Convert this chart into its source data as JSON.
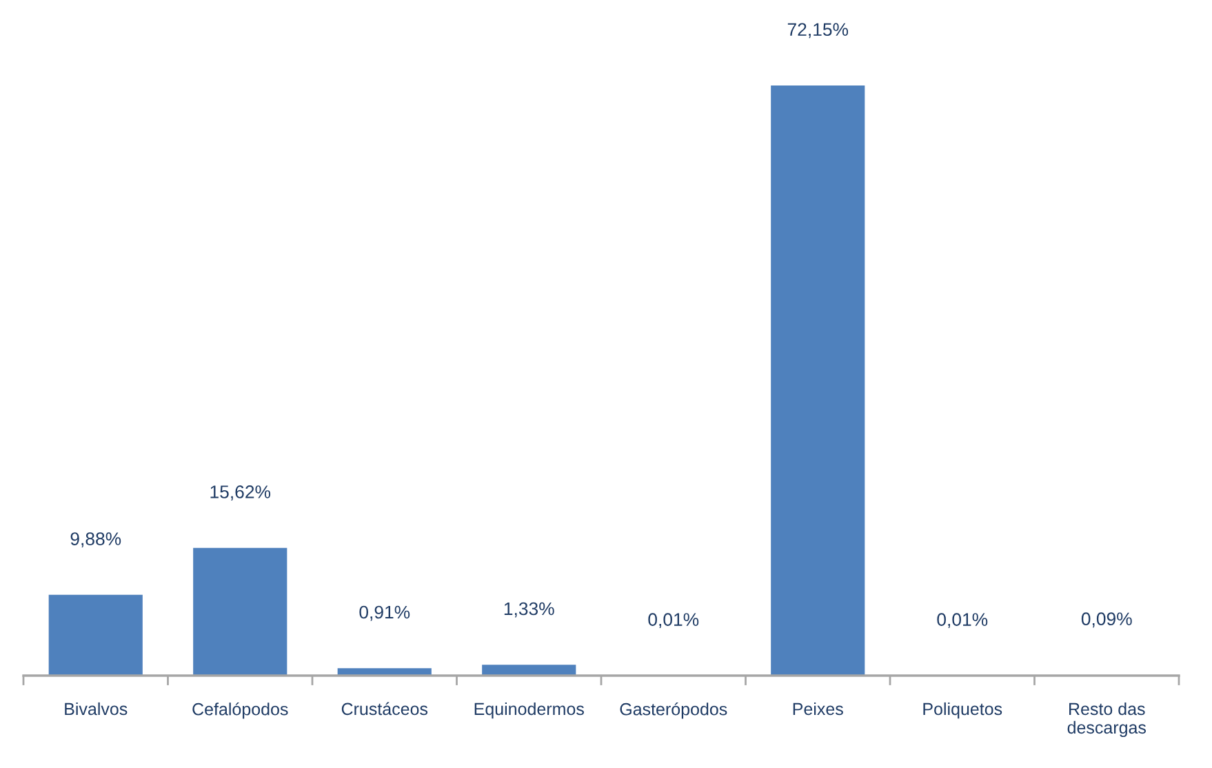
{
  "chart_data": {
    "type": "bar",
    "categories": [
      "Bivalvos",
      "Cefalópodos",
      "Crustáceos",
      "Equinodermos",
      "Gasterópodos",
      "Peixes",
      "Poliquetos",
      "Resto das\ndescargas"
    ],
    "values": [
      9.88,
      15.62,
      0.91,
      1.33,
      0.01,
      72.15,
      0.01,
      0.09
    ],
    "value_labels": [
      "9,88%",
      "15,62%",
      "0,91%",
      "1,33%",
      "0,01%",
      "72,15%",
      "0,01%",
      "0,09%"
    ],
    "color": "#4f81bd",
    "tick_labels": "x"
  }
}
